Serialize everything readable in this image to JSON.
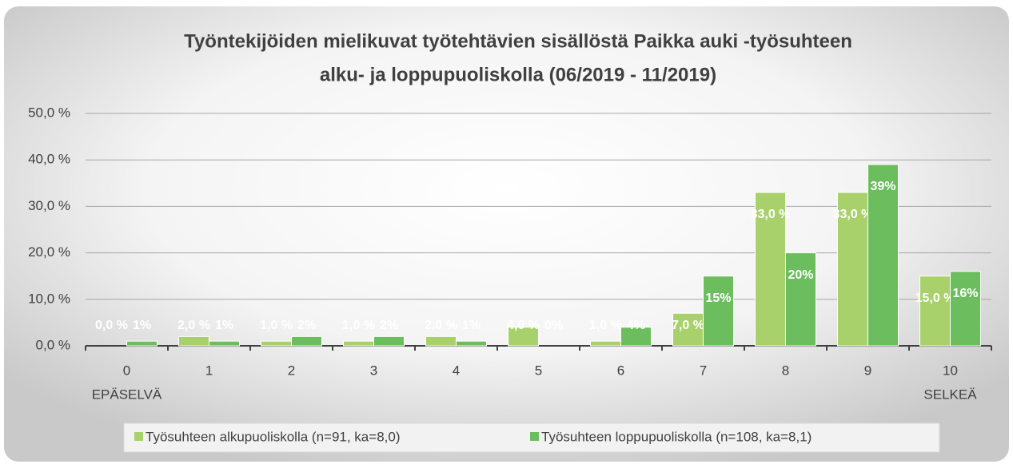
{
  "chart_data": {
    "type": "bar",
    "title": [
      "Työntekijöiden mielikuvat työtehtävien sisällöstä Paikka auki -työsuhteen",
      "alku- ja loppupuoliskolla (06/2019 - 11/2019)"
    ],
    "categories": [
      "0",
      "1",
      "2",
      "3",
      "4",
      "5",
      "6",
      "7",
      "8",
      "9",
      "10"
    ],
    "scale_end_labels": [
      "EPÄSELVÄ",
      "SELKEÄ"
    ],
    "series": [
      {
        "name": "Työsuhteen alkupuoliskolla (n=91, ka=8,0)",
        "color": "#a9d16b",
        "values": [
          0,
          2,
          1,
          1,
          2,
          4,
          1,
          7,
          33,
          33,
          15
        ],
        "value_labels": [
          "0,0 %",
          "2,0 %",
          "1,0 %",
          "1,0 %",
          "2,0 %",
          "4,0 %",
          "1,0 %",
          "7,0 %",
          "33,0 %",
          "33,0 %",
          "15,0 %"
        ]
      },
      {
        "name": "Työsuhteen loppupuoliskolla (n=108, ka=8,1)",
        "color": "#6bbd5e",
        "values": [
          1,
          1,
          2,
          2,
          1,
          0,
          4,
          15,
          20,
          39,
          16
        ],
        "value_labels": [
          "1%",
          "1%",
          "2%",
          "2%",
          "1%",
          "0%",
          "4%",
          "15%",
          "20%",
          "39%",
          "16%"
        ]
      }
    ],
    "ylim": [
      0,
      50
    ],
    "yticks": [
      {
        "value": 0,
        "label": "0,0 %"
      },
      {
        "value": 10,
        "label": "10,0 %"
      },
      {
        "value": 20,
        "label": "20,0 %"
      },
      {
        "value": 30,
        "label": "30,0 %"
      },
      {
        "value": 40,
        "label": "40,0 %"
      },
      {
        "value": 50,
        "label": "50,0 %"
      }
    ],
    "grid": true,
    "legend": "bottom"
  }
}
